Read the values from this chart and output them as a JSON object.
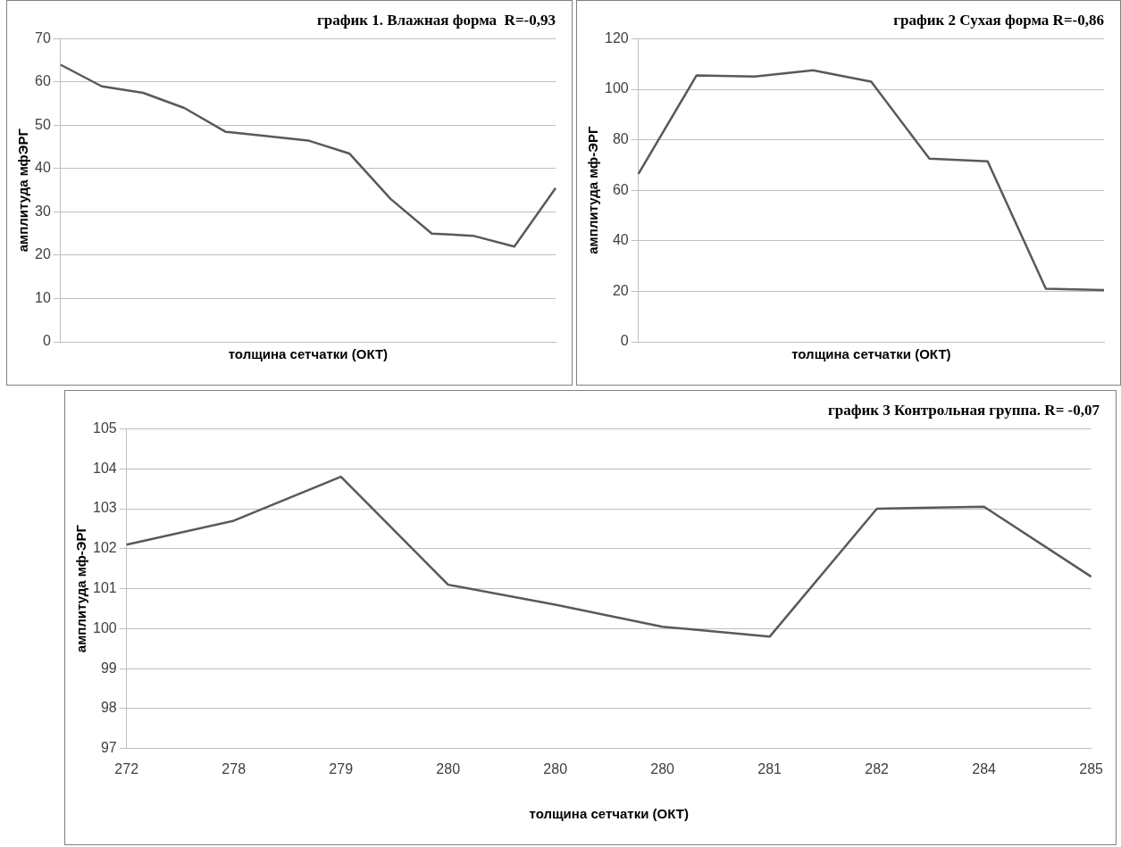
{
  "chart_data": [
    {
      "type": "line",
      "title": "график 1. Влажная форма  R=-0,93",
      "xlabel": "толщина сетчатки (ОКТ)",
      "ylabel": "амплитуда мфЭРГ",
      "categories": [
        null,
        null,
        null,
        null,
        null,
        null,
        null,
        null,
        null,
        null,
        null,
        null,
        null
      ],
      "series": [
        {
          "color": "#595959",
          "values": [
            64,
            59,
            57.5,
            54,
            48.5,
            47.5,
            46.5,
            43.5,
            33,
            25,
            24.5,
            22,
            35.5
          ]
        }
      ],
      "ylim": [
        0,
        70
      ],
      "yticks": [
        0,
        10,
        20,
        30,
        40,
        50,
        60,
        70
      ],
      "grid": "y",
      "marker": "none",
      "line_style": "solid"
    },
    {
      "type": "line",
      "title": "график 2 Сухая форма R=-0,86",
      "xlabel": "толщина сетчатки (ОКТ)",
      "ylabel": "амплитуда мф-ЭРГ",
      "categories": [
        null,
        null,
        null,
        null,
        null,
        null,
        null,
        null,
        null
      ],
      "series": [
        {
          "color": "#595959",
          "values": [
            66.5,
            105.5,
            105,
            107.5,
            103,
            72.5,
            71.5,
            21,
            20.5
          ]
        }
      ],
      "ylim": [
        0,
        120
      ],
      "yticks": [
        0,
        20,
        40,
        60,
        80,
        100,
        120
      ],
      "grid": "y",
      "marker": "none",
      "line_style": "solid"
    },
    {
      "type": "line",
      "title": "график 3 Контрольная группа. R= -0,07",
      "xlabel": "толщина сетчатки (ОКТ)",
      "ylabel": "амплитуда мф-ЭРГ",
      "categories": [
        "272",
        "278",
        "279",
        "280",
        "280",
        "280",
        "281",
        "282",
        "284",
        "285"
      ],
      "series": [
        {
          "color": "#595959",
          "values": [
            102.1,
            102.7,
            103.8,
            101.1,
            100.6,
            100.05,
            99.8,
            103,
            103.05,
            101.3
          ]
        }
      ],
      "ylim": [
        97,
        105
      ],
      "yticks": [
        97,
        98,
        99,
        100,
        101,
        102,
        103,
        104,
        105
      ],
      "grid": "y",
      "marker": "none",
      "line_style": "solid"
    }
  ]
}
